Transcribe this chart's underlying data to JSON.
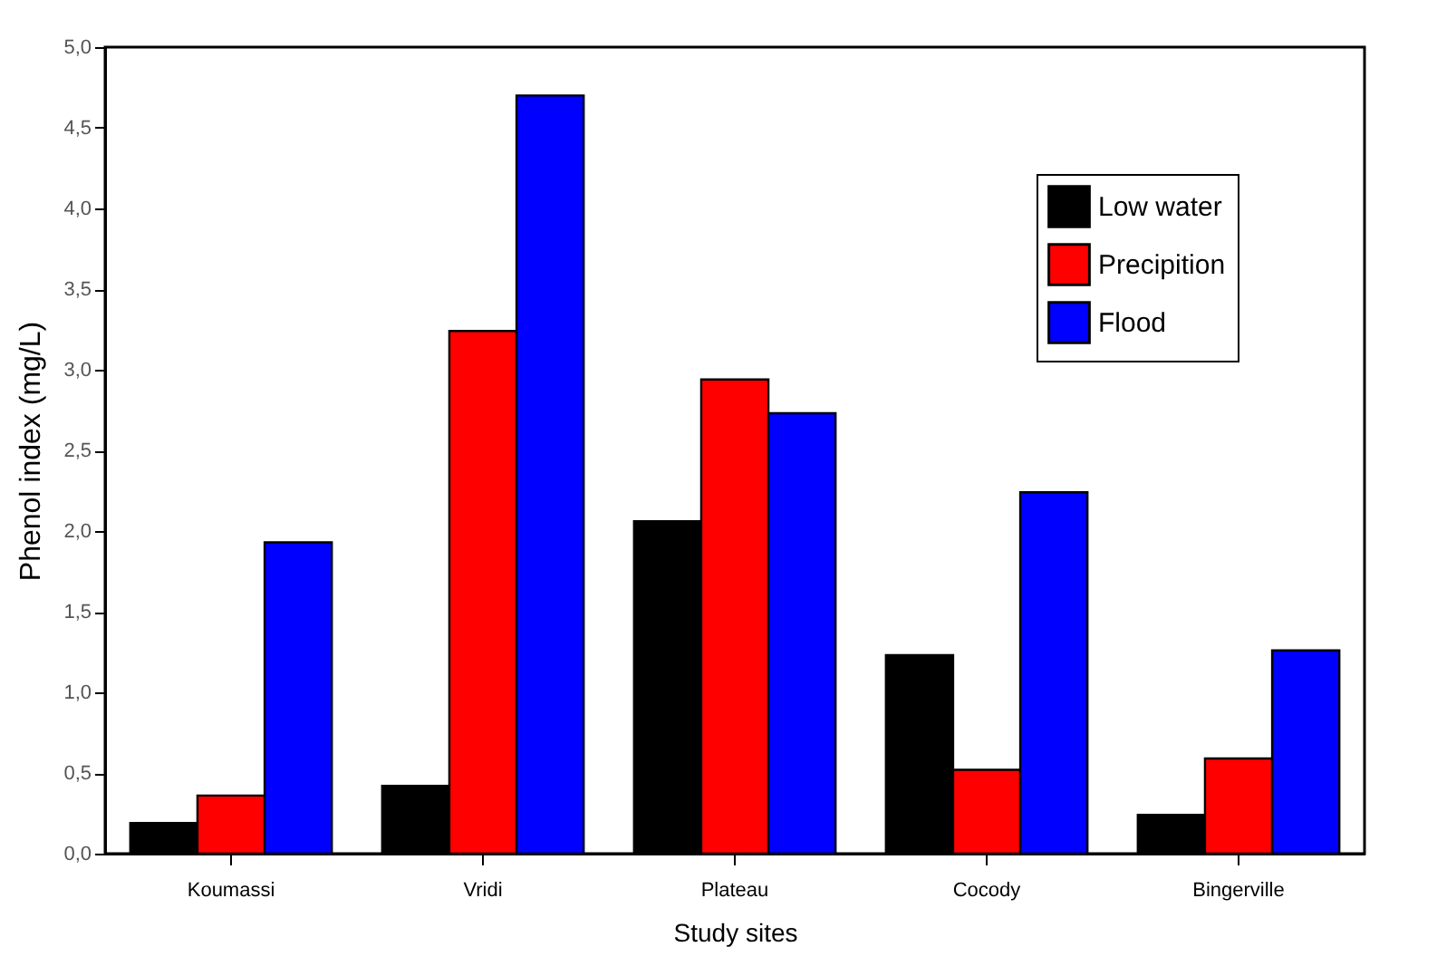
{
  "chart_data": {
    "type": "bar",
    "xlabel": "Study sites",
    "ylabel": "Phenol index (mg/L)",
    "categories": [
      "Koumassi",
      "Vridi",
      "Plateau",
      "Cocody",
      "Bingerville"
    ],
    "series": [
      {
        "name": "Low water",
        "color": "#000000",
        "values": [
          0.19,
          0.42,
          2.06,
          1.23,
          0.24
        ]
      },
      {
        "name": "Precipition",
        "color": "#ff0000",
        "values": [
          0.36,
          3.24,
          2.94,
          0.52,
          0.59
        ]
      },
      {
        "name": "Flood",
        "color": "#0000ff",
        "values": [
          1.93,
          4.7,
          2.73,
          2.24,
          1.26
        ]
      }
    ],
    "ylim": [
      0,
      5
    ],
    "yticks": [
      {
        "value": 0,
        "label": "0,0"
      },
      {
        "value": 0.5,
        "label": "0,5"
      },
      {
        "value": 1,
        "label": "1,0"
      },
      {
        "value": 1.5,
        "label": "1,5"
      },
      {
        "value": 2,
        "label": "2,0"
      },
      {
        "value": 2.5,
        "label": "2,5"
      },
      {
        "value": 3,
        "label": "3,0"
      },
      {
        "value": 3.5,
        "label": "3,5"
      },
      {
        "value": 4,
        "label": "4,0"
      },
      {
        "value": 4.5,
        "label": "4,5"
      },
      {
        "value": 5,
        "label": "5,0"
      }
    ],
    "legend": "top right"
  }
}
